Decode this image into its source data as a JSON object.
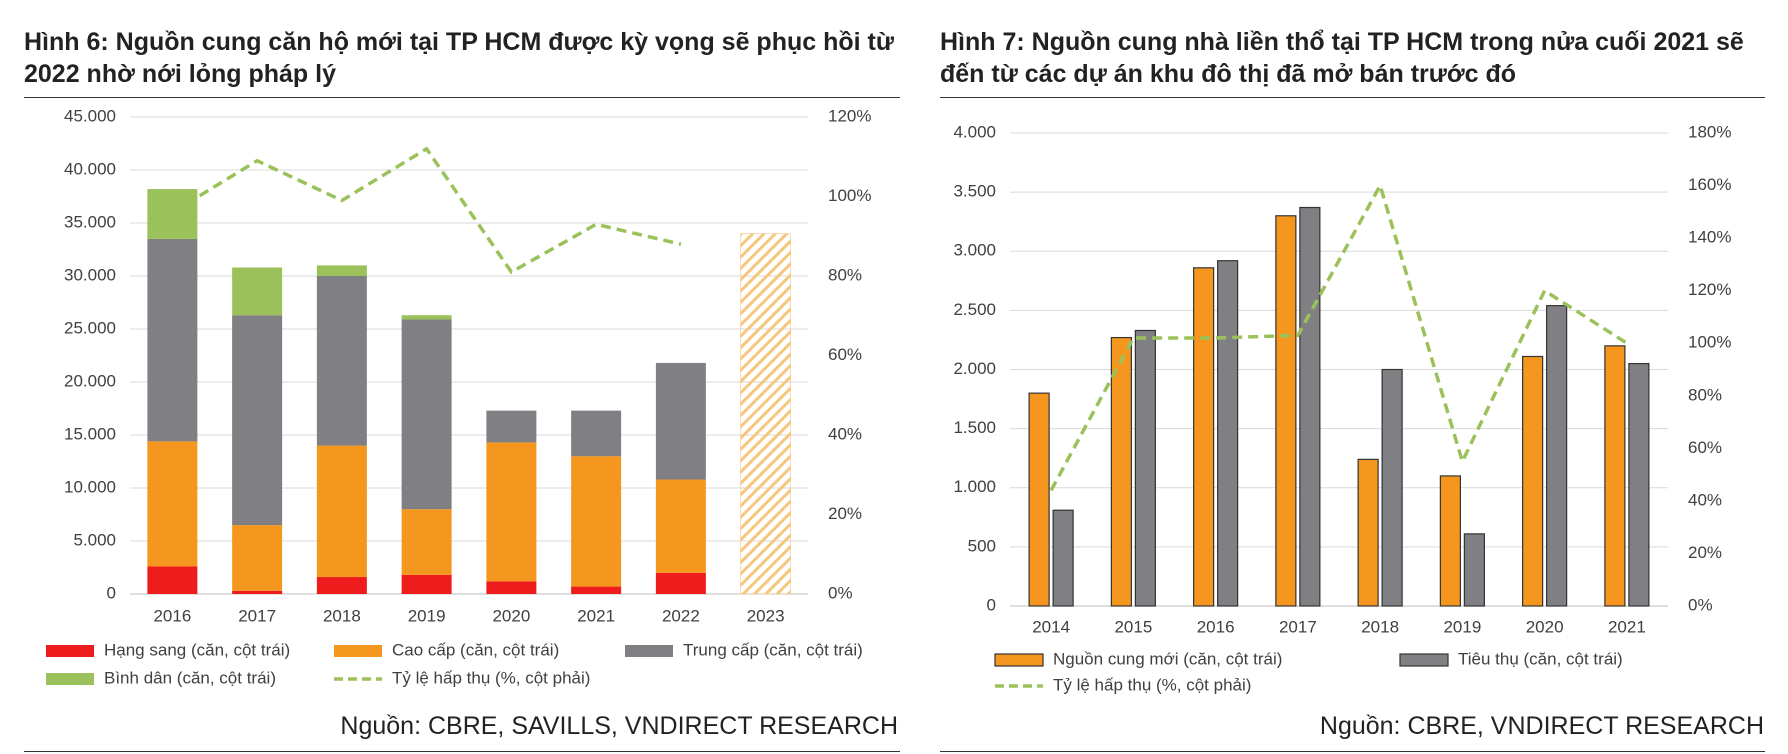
{
  "chart_data": [
    {
      "type": "bar",
      "stacked": true,
      "title": "Hình 6: Nguồn cung căn hộ mới tại TP HCM được kỳ vọng sẽ phục hồi từ 2022 nhờ nới lỏng pháp lý",
      "source": "Nguồn: CBRE, SAVILLS, VNDIRECT RESEARCH",
      "categories": [
        "2016",
        "2017",
        "2018",
        "2019",
        "2020",
        "2021",
        "2022",
        "2023"
      ],
      "series": [
        {
          "name": "Hạng sang (căn, cột trái)",
          "color": "#ee1c1c",
          "values": [
            2600,
            300,
            1600,
            1800,
            1200,
            700,
            2000,
            null
          ]
        },
        {
          "name": "Cao cấp (căn, cột trái)",
          "color": "#f5961e",
          "values": [
            11800,
            6200,
            12400,
            6200,
            13100,
            12300,
            8800,
            null
          ]
        },
        {
          "name": "Trung cấp (căn, cột trái)",
          "color": "#808084",
          "values": [
            19100,
            19800,
            16000,
            17900,
            3000,
            4300,
            11000,
            null
          ]
        },
        {
          "name": "Bình dân (căn, cột trái)",
          "color": "#9bc25a",
          "values": [
            4700,
            4500,
            1000,
            400,
            0,
            0,
            0,
            null
          ]
        },
        {
          "name": "Tỷ lệ hấp thụ (%, cột phải)",
          "color": "#9bc25a",
          "type": "line",
          "dashed": true,
          "axis": "y2",
          "values": [
            96,
            109,
            99,
            112,
            81,
            93,
            88,
            null
          ]
        }
      ],
      "forecast": {
        "color": "#f5c77e",
        "values": [
          null,
          null,
          null,
          null,
          null,
          null,
          null,
          34000
        ]
      },
      "ylim": [
        0,
        45000
      ],
      "yticks": [
        {
          "value": 0,
          "label": "0"
        },
        {
          "value": 5000,
          "label": "5.000"
        },
        {
          "value": 10000,
          "label": "10.000"
        },
        {
          "value": 15000,
          "label": "15.000"
        },
        {
          "value": 20000,
          "label": "20.000"
        },
        {
          "value": 25000,
          "label": "25.000"
        },
        {
          "value": 30000,
          "label": "30.000"
        },
        {
          "value": 35000,
          "label": "35.000"
        },
        {
          "value": 40000,
          "label": "40.000"
        },
        {
          "value": 45000,
          "label": "45.000"
        }
      ],
      "y2lim": [
        0,
        120
      ],
      "y2ticks": [
        {
          "value": 0,
          "label": "0%"
        },
        {
          "value": 20,
          "label": "20%"
        },
        {
          "value": 40,
          "label": "40%"
        },
        {
          "value": 60,
          "label": "60%"
        },
        {
          "value": 80,
          "label": "80%"
        },
        {
          "value": 100,
          "label": "100%"
        },
        {
          "value": 120,
          "label": "120%"
        }
      ],
      "grid": true
    },
    {
      "type": "bar",
      "stacked": false,
      "title": "Hình 7: Nguồn cung nhà liền thổ tại TP HCM trong nửa cuối 2021 sẽ đến từ các dự án khu đô thị đã mở bán trước đó",
      "source": "Nguồn: CBRE, VNDIRECT RESEARCH",
      "categories": [
        "2014",
        "2015",
        "2016",
        "2017",
        "2018",
        "2019",
        "2020",
        "2021"
      ],
      "series": [
        {
          "name": "Nguồn cung mới (căn, cột trái)",
          "color": "#f5961e",
          "values": [
            1800,
            2270,
            2860,
            3300,
            1240,
            1100,
            2110,
            2200
          ]
        },
        {
          "name": "Tiêu thụ (căn, cột trái)",
          "color": "#808084",
          "values": [
            810,
            2330,
            2920,
            3370,
            2000,
            610,
            2540,
            2050
          ]
        },
        {
          "name": "Tỷ lệ hấp thụ (%, cột phải)",
          "color": "#9bc25a",
          "type": "line",
          "dashed": true,
          "axis": "y2",
          "values": [
            44,
            102,
            102,
            103,
            160,
            55,
            120,
            100
          ]
        }
      ],
      "ylim": [
        0,
        4000
      ],
      "yticks": [
        {
          "value": 0,
          "label": "0"
        },
        {
          "value": 500,
          "label": "500"
        },
        {
          "value": 1000,
          "label": "1.000"
        },
        {
          "value": 1500,
          "label": "1.500"
        },
        {
          "value": 2000,
          "label": "2.000"
        },
        {
          "value": 2500,
          "label": "2.500"
        },
        {
          "value": 3000,
          "label": "3.000"
        },
        {
          "value": 3500,
          "label": "3.500"
        },
        {
          "value": 4000,
          "label": "4.000"
        }
      ],
      "y2lim": [
        0,
        180
      ],
      "y2ticks": [
        {
          "value": 0,
          "label": "0%"
        },
        {
          "value": 20,
          "label": "20%"
        },
        {
          "value": 40,
          "label": "40%"
        },
        {
          "value": 60,
          "label": "60%"
        },
        {
          "value": 80,
          "label": "80%"
        },
        {
          "value": 100,
          "label": "100%"
        },
        {
          "value": 120,
          "label": "120%"
        },
        {
          "value": 140,
          "label": "140%"
        },
        {
          "value": 160,
          "label": "160%"
        },
        {
          "value": 180,
          "label": "180%"
        }
      ],
      "grid": true
    }
  ]
}
